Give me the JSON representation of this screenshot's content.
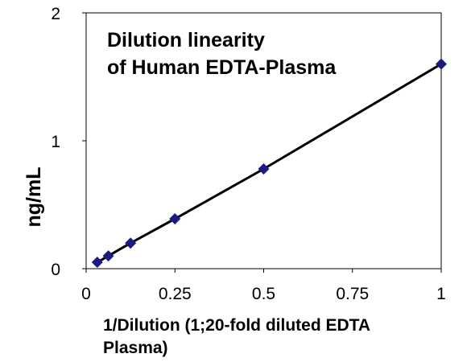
{
  "chart_data": {
    "type": "scatter",
    "title_lines": [
      "Dilution linearity",
      "of Human EDTA-Plasma"
    ],
    "xlabel_lines": [
      "1/Dilution  (1;20-fold diluted EDTA",
      "Plasma)"
    ],
    "ylabel": "ng/mL",
    "xlim": [
      0,
      1
    ],
    "ylim": [
      0,
      2
    ],
    "x_ticks": [
      {
        "value": 0,
        "label": "0"
      },
      {
        "value": 0.25,
        "label": "0.25"
      },
      {
        "value": 0.5,
        "label": "0.5"
      },
      {
        "value": 0.75,
        "label": "0.75"
      },
      {
        "value": 1,
        "label": "1"
      }
    ],
    "y_ticks": [
      {
        "value": 0,
        "label": "0"
      },
      {
        "value": 1,
        "label": "1"
      },
      {
        "value": 2,
        "label": "2"
      }
    ],
    "grid": false,
    "legend": "none",
    "trendline": true,
    "series": [
      {
        "points": [
          {
            "x": 0.03125,
            "y": 0.05
          },
          {
            "x": 0.0625,
            "y": 0.1
          },
          {
            "x": 0.125,
            "y": 0.2
          },
          {
            "x": 0.25,
            "y": 0.39
          },
          {
            "x": 0.5,
            "y": 0.78
          },
          {
            "x": 1,
            "y": 1.6
          }
        ],
        "marker_color": "#1a1a80",
        "line_color": "#000000"
      }
    ]
  }
}
